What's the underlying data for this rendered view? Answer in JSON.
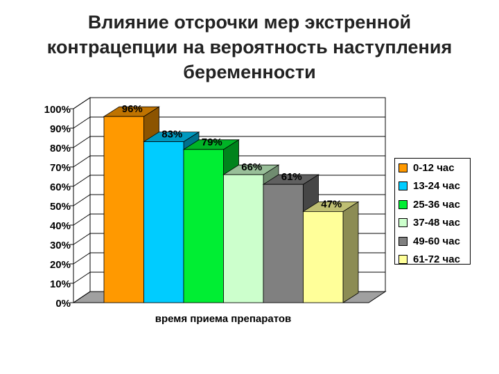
{
  "title_lines": [
    "Влияние отсрочки мер экстренной",
    "контрацепции на вероятность наступления",
    "беременности"
  ],
  "chart_data": {
    "type": "bar",
    "categories": [
      "0-12 час",
      "13-24 час",
      "25-36 час",
      "37-48 час",
      "49-60 час",
      "61-72 час"
    ],
    "values": [
      96,
      83,
      79,
      66,
      61,
      47
    ],
    "data_labels": [
      "96%",
      "83%",
      "79%",
      "66%",
      "61%",
      "47%"
    ],
    "colors": [
      "#FF9900",
      "#00CCFF",
      "#00EE33",
      "#CCFFCC",
      "#808080",
      "#FFFF99"
    ],
    "xlabel": "время приема препаратов",
    "ylabel": "",
    "ylim": [
      0,
      100
    ],
    "yticks": [
      "0%",
      "10%",
      "20%",
      "30%",
      "40%",
      "50%",
      "60%",
      "70%",
      "80%",
      "90%",
      "100%"
    ],
    "grid": true,
    "legend_position": "right",
    "style": "3d-bar"
  }
}
